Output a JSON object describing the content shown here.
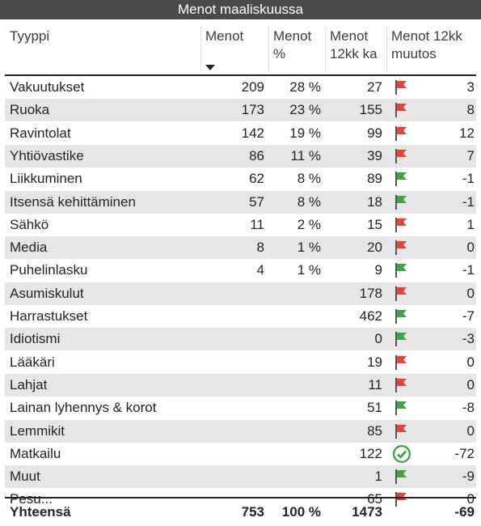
{
  "title": "Menot maaliskuussa",
  "headers": {
    "type": "Tyyppi",
    "amount": "Menot",
    "percent_line1": "Menot",
    "percent_line2": "%",
    "avg_line1": "Menot",
    "avg_line2": "12kk ka",
    "change_line1": "Menot 12kk",
    "change_line2": "muutos"
  },
  "colors": {
    "flag_red": "#e8423b",
    "flag_green": "#3aa84a",
    "check_green": "#2ea043",
    "row_alt": "#e6e6e6"
  },
  "rows": [
    {
      "name": "Vakuutukset",
      "amount": "209",
      "percent": "28 %",
      "avg": "27",
      "indicator": "red-flag-icon",
      "change": "3"
    },
    {
      "name": "Ruoka",
      "amount": "173",
      "percent": "23 %",
      "avg": "155",
      "indicator": "red-flag-icon",
      "change": "8"
    },
    {
      "name": "Ravintolat",
      "amount": "142",
      "percent": "19 %",
      "avg": "99",
      "indicator": "red-flag-icon",
      "change": "12"
    },
    {
      "name": "Yhtiövastike",
      "amount": "86",
      "percent": "11 %",
      "avg": "39",
      "indicator": "red-flag-icon",
      "change": "7"
    },
    {
      "name": "Liikkuminen",
      "amount": "62",
      "percent": "8 %",
      "avg": "89",
      "indicator": "green-flag-icon",
      "change": "-1"
    },
    {
      "name": "Itsensä kehittäminen",
      "amount": "57",
      "percent": "8 %",
      "avg": "18",
      "indicator": "green-flag-icon",
      "change": "-1"
    },
    {
      "name": "Sähkö",
      "amount": "11",
      "percent": "2 %",
      "avg": "15",
      "indicator": "red-flag-icon",
      "change": "1"
    },
    {
      "name": "Media",
      "amount": "8",
      "percent": "1 %",
      "avg": "20",
      "indicator": "red-flag-icon",
      "change": "0"
    },
    {
      "name": "Puhelinlasku",
      "amount": "4",
      "percent": "1 %",
      "avg": "9",
      "indicator": "green-flag-icon",
      "change": "-1"
    },
    {
      "name": "Asumiskulut",
      "amount": "",
      "percent": "",
      "avg": "178",
      "indicator": "red-flag-icon",
      "change": "0"
    },
    {
      "name": "Harrastukset",
      "amount": "",
      "percent": "",
      "avg": "462",
      "indicator": "green-flag-icon",
      "change": "-7"
    },
    {
      "name": "Idiotismi",
      "amount": "",
      "percent": "",
      "avg": "0",
      "indicator": "green-flag-icon",
      "change": "-3"
    },
    {
      "name": "Lääkäri",
      "amount": "",
      "percent": "",
      "avg": "19",
      "indicator": "red-flag-icon",
      "change": "0"
    },
    {
      "name": "Lahjat",
      "amount": "",
      "percent": "",
      "avg": "11",
      "indicator": "red-flag-icon",
      "change": "0"
    },
    {
      "name": "Lainan lyhennys & korot",
      "amount": "",
      "percent": "",
      "avg": "51",
      "indicator": "green-flag-icon",
      "change": "-8"
    },
    {
      "name": "Lemmikit",
      "amount": "",
      "percent": "",
      "avg": "85",
      "indicator": "red-flag-icon",
      "change": "0"
    },
    {
      "name": "Matkailu",
      "amount": "",
      "percent": "",
      "avg": "122",
      "indicator": "check-circle-icon",
      "change": "-72"
    },
    {
      "name": "Muut",
      "amount": "",
      "percent": "",
      "avg": "1",
      "indicator": "green-flag-icon",
      "change": "-9"
    },
    {
      "name": "Pesu...",
      "amount": "",
      "percent": "",
      "avg": "65",
      "indicator": "red-flag-icon",
      "change": "0"
    }
  ],
  "total": {
    "label": "Yhteensä",
    "amount": "753",
    "percent": "100 %",
    "avg": "1473",
    "change": "-69"
  }
}
